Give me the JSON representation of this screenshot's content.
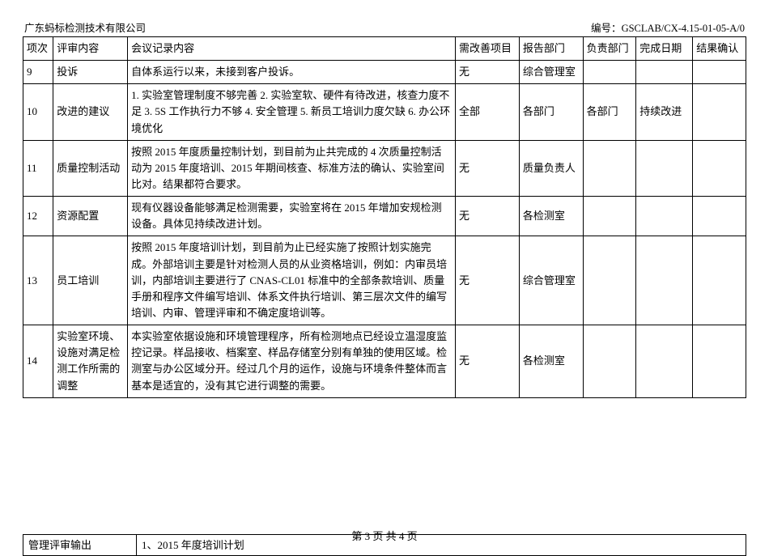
{
  "header": {
    "company": "广东蚂标检测技术有限公司",
    "doc_code_label": "编号：",
    "doc_code": "GSCLAB/CX-4.15-01-05-A/0"
  },
  "table": {
    "headers": [
      "项次",
      "评审内容",
      "会议记录内容",
      "需改善项目",
      "报告部门",
      "负责部门",
      "完成日期",
      "结果确认"
    ],
    "rows": [
      {
        "no": "9",
        "topic": "投诉",
        "record": "自体系运行以来，未接到客户投诉。",
        "improve": "无",
        "report_dept": "综合管理室",
        "resp_dept": "",
        "due": "",
        "confirm": ""
      },
      {
        "no": "10",
        "topic": "改进的建议",
        "record": "1. 实验室管理制度不够完善  2. 实验室软、硬件有待改进，核查力度不足 3. 5S 工作执行力不够 4. 安全管理 5. 新员工培训力度欠缺 6. 办公环境优化",
        "improve": "全部",
        "report_dept": "各部门",
        "resp_dept": "各部门",
        "due": "持续改进",
        "confirm": ""
      },
      {
        "no": "11",
        "topic": "质量控制活动",
        "record": "按照 2015 年度质量控制计划，到目前为止共完成的 4 次质量控制活动为 2015 年度培训、2015 年期间核查、标准方法的确认、实验室间比对。结果都符合要求。",
        "improve": "无",
        "report_dept": "质量负责人",
        "resp_dept": "",
        "due": "",
        "confirm": ""
      },
      {
        "no": "12",
        "topic": "资源配置",
        "record": "现有仪器设备能够满足检测需要，实验室将在 2015 年增加安规检测设备。具体见持续改进计划。",
        "improve": "无",
        "report_dept": "各检测室",
        "resp_dept": "",
        "due": "",
        "confirm": ""
      },
      {
        "no": "13",
        "topic": "员工培训",
        "record": "按照 2015 年度培训计划，到目前为止已经实施了按照计划实施完成。外部培训主要是针对检测人员的从业资格培训，例如：内审员培训，内部培训主要进行了 CNAS-CL01 标准中的全部条款培训、质量手册和程序文件编写培训、体系文件执行培训、第三层次文件的编写培训、内审、管理评审和不确定度培训等。",
        "improve": "无",
        "report_dept": "综合管理室",
        "resp_dept": "",
        "due": "",
        "confirm": ""
      },
      {
        "no": "14",
        "topic": "实验室环境、设施对满足检测工作所需的调整",
        "record": "本实验室依据设施和环境管理程序，所有检测地点已经设立温湿度监控记录。样品接收、档案室、样品存储室分别有单独的使用区域。检测室与办公区域分开。经过几个月的运作，设施与环境条件整体而言基本是适宜的，没有其它进行调整的需要。",
        "improve": "无",
        "report_dept": "各检测室",
        "resp_dept": "",
        "due": "",
        "confirm": ""
      }
    ]
  },
  "output": {
    "label": "管理评审输出",
    "value": "1、2015 年度培训计划"
  },
  "footer": {
    "page": "第 3 页 共 4 页"
  }
}
